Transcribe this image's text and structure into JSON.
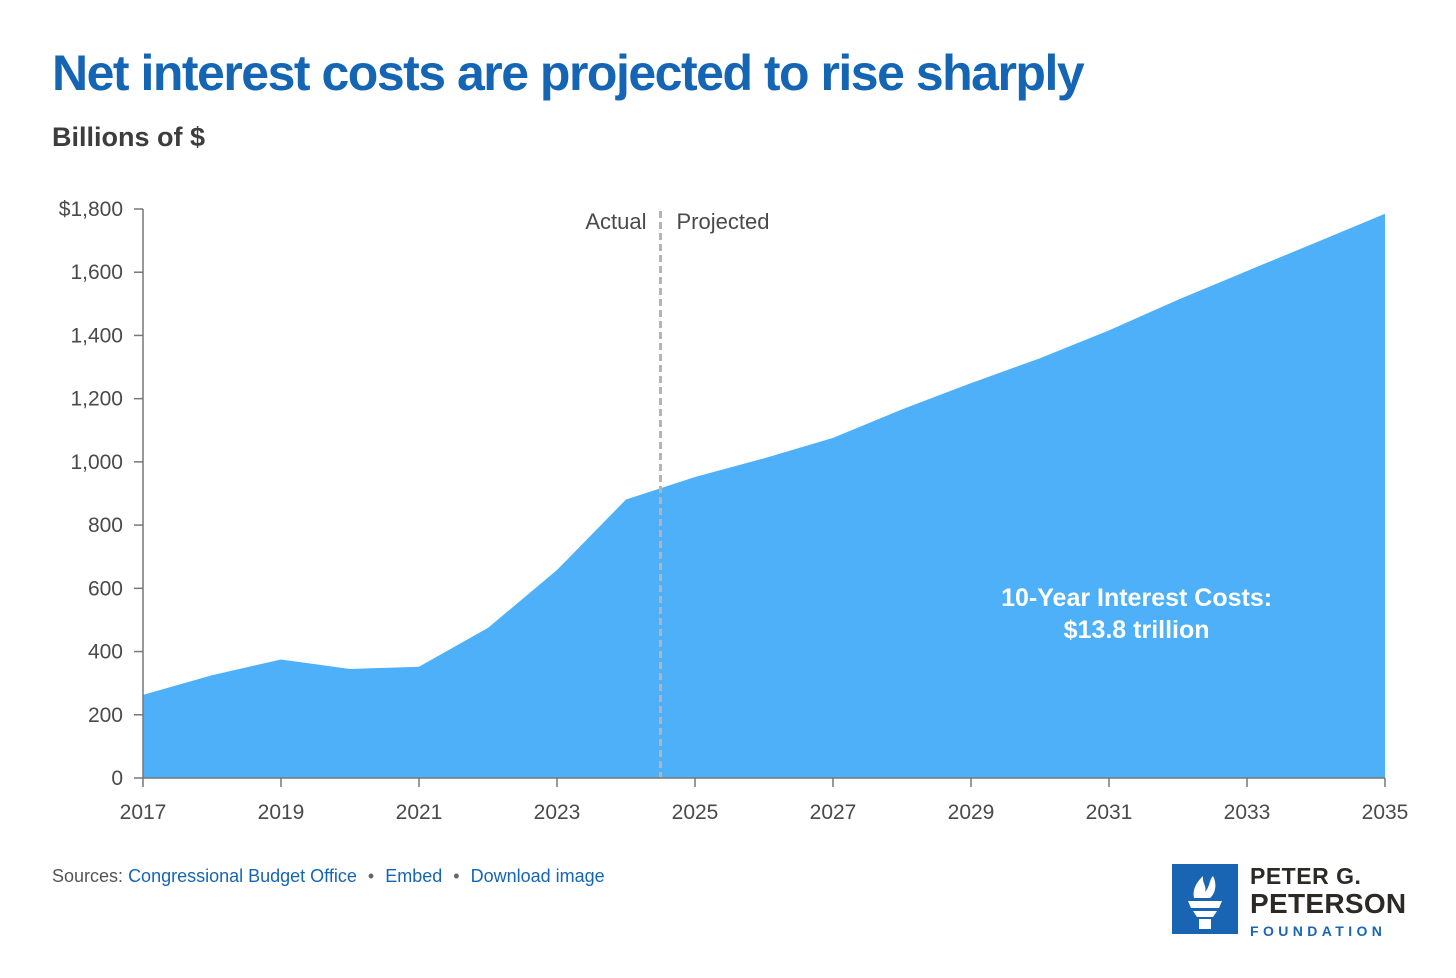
{
  "title": "Net interest costs are projected to rise sharply",
  "subtitle": "Billions of $",
  "chart_data": {
    "type": "area",
    "x": [
      2017,
      2018,
      2019,
      2020,
      2021,
      2022,
      2023,
      2024,
      2025,
      2026,
      2027,
      2028,
      2029,
      2030,
      2031,
      2032,
      2033,
      2034,
      2035
    ],
    "series": [
      {
        "values": [
          263,
          325,
          375,
          345,
          352,
          475,
          658,
          881,
          952,
          1011,
          1076,
          1166,
          1249,
          1328,
          1416,
          1513,
          1604,
          1694,
          1785
        ]
      }
    ],
    "xlim": [
      2017,
      2035
    ],
    "ylim": [
      0,
      1800
    ],
    "y_ticks": [
      0,
      200,
      400,
      600,
      800,
      1000,
      1200,
      1400,
      1600,
      1800
    ],
    "y_tick_labels": [
      "0",
      "200",
      "400",
      "600",
      "800",
      "1,000",
      "1,200",
      "1,400",
      "1,600",
      "$1,800"
    ],
    "x_ticks": [
      2017,
      2019,
      2021,
      2023,
      2025,
      2027,
      2029,
      2031,
      2033,
      2035
    ],
    "x_tick_labels": [
      "2017",
      "2019",
      "2021",
      "2023",
      "2025",
      "2027",
      "2029",
      "2031",
      "2033",
      "2035"
    ],
    "divider_x": 2024.5,
    "divider_labels": {
      "left": "Actual",
      "right": "Projected"
    },
    "annotation": {
      "line1": "10-Year Interest Costs:",
      "line2": "$13.8 trillion",
      "x": 2031.4,
      "y": 570
    },
    "grid": false,
    "fill_color": "#4db0f8",
    "axis_color": "#777777",
    "divider_color": "#b4b4b4",
    "text_color": "#4a4a4a"
  },
  "footer": {
    "sources_label": "Sources:",
    "source_link": "Congressional Budget Office",
    "separator": "•",
    "embed": "Embed",
    "download": "Download image"
  },
  "logo": {
    "line1": "PETER G.",
    "line2": "PETERSON",
    "line3": "FOUNDATION",
    "icon": "torch-icon",
    "box_color": "#1a65b3"
  }
}
